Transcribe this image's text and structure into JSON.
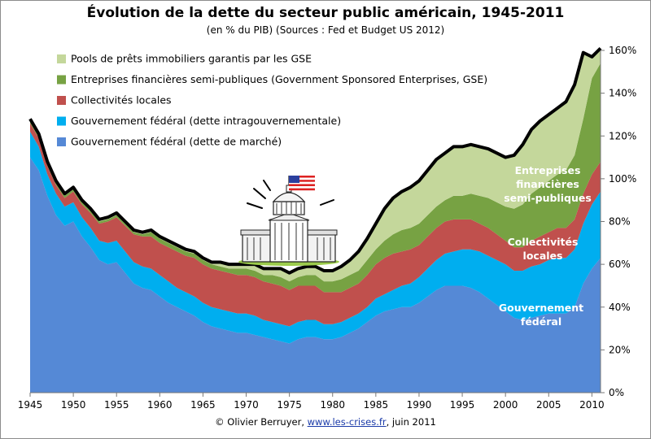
{
  "chart_data": {
    "type": "area",
    "title": "Évolution de la dette du secteur public américain, 1945-2011",
    "subtitle": "(en % du PIB) (Sources : Fed et Budget US 2012)",
    "xlabel": "",
    "ylabel": "",
    "xlim": [
      1945,
      2011
    ],
    "ylim": [
      0,
      160
    ],
    "stacked": true,
    "grid": false,
    "legend_placement": "top-left",
    "x_ticks": [
      1945,
      1950,
      1955,
      1960,
      1965,
      1970,
      1975,
      1980,
      1985,
      1990,
      1995,
      2000,
      2005,
      2010
    ],
    "x_tick_labels": [
      "1945",
      "1950",
      "1955",
      "1960",
      "1965",
      "1970",
      "1975",
      "1980",
      "1985",
      "1990",
      "1995",
      "2000",
      "2005",
      "2010"
    ],
    "y_ticks": [
      0,
      20,
      40,
      60,
      80,
      100,
      120,
      140,
      160
    ],
    "y_tick_labels": [
      "0%",
      "20%",
      "40%",
      "60%",
      "80%",
      "100%",
      "120%",
      "140%",
      "160%"
    ],
    "x": [
      1945,
      1946,
      1947,
      1948,
      1949,
      1950,
      1951,
      1952,
      1953,
      1954,
      1955,
      1956,
      1957,
      1958,
      1959,
      1960,
      1961,
      1962,
      1963,
      1964,
      1965,
      1966,
      1967,
      1968,
      1969,
      1970,
      1971,
      1972,
      1973,
      1974,
      1975,
      1976,
      1977,
      1978,
      1979,
      1980,
      1981,
      1982,
      1983,
      1984,
      1985,
      1986,
      1987,
      1988,
      1989,
      1990,
      1991,
      1992,
      1993,
      1994,
      1995,
      1996,
      1997,
      1998,
      1999,
      2000,
      2001,
      2002,
      2003,
      2004,
      2005,
      2006,
      2007,
      2008,
      2009,
      2010,
      2011
    ],
    "series": [
      {
        "name": "Gouvernement fédéral (dette de marché)",
        "color": "#5589d6",
        "values": [
          110,
          104,
          92,
          83,
          78,
          80,
          73,
          68,
          62,
          60,
          61,
          56,
          51,
          49,
          48,
          45,
          42,
          40,
          38,
          36,
          33,
          31,
          30,
          29,
          28,
          28,
          27,
          26,
          25,
          24,
          23,
          25,
          26,
          26,
          25,
          25,
          26,
          28,
          30,
          33,
          36,
          38,
          39,
          40,
          40,
          42,
          45,
          48,
          50,
          50,
          50,
          49,
          47,
          44,
          41,
          38,
          35,
          34,
          35,
          36,
          37,
          37,
          37,
          40,
          51,
          58,
          63
        ]
      },
      {
        "name": "Gouvernement fédéral (dette intragouvernementale)",
        "color": "#00aeef",
        "values": [
          12,
          11,
          10,
          10,
          9,
          9,
          9,
          9,
          9,
          10,
          10,
          10,
          10,
          10,
          10,
          10,
          10,
          9,
          9,
          9,
          9,
          9,
          9,
          9,
          9,
          9,
          9,
          8,
          8,
          8,
          8,
          8,
          8,
          8,
          7,
          7,
          7,
          7,
          7,
          7,
          8,
          8,
          9,
          10,
          11,
          12,
          13,
          14,
          15,
          16,
          17,
          18,
          19,
          20,
          21,
          22,
          22,
          23,
          24,
          24,
          25,
          26,
          26,
          27,
          28,
          30,
          31
        ]
      },
      {
        "name": "Collectivités locales",
        "color": "#c0504d",
        "values": [
          4,
          4,
          4,
          4,
          4,
          5,
          6,
          7,
          8,
          10,
          11,
          12,
          13,
          14,
          15,
          15,
          16,
          17,
          17,
          18,
          18,
          18,
          18,
          18,
          18,
          18,
          18,
          18,
          18,
          18,
          17,
          17,
          16,
          16,
          15,
          15,
          14,
          14,
          14,
          15,
          16,
          17,
          17,
          16,
          16,
          15,
          15,
          15,
          15,
          15,
          14,
          14,
          13,
          13,
          12,
          11,
          11,
          11,
          12,
          13,
          13,
          14,
          14,
          14,
          14,
          14,
          14
        ]
      },
      {
        "name": "Entreprises financières semi-publiques (Government Sponsored Enterprises, GSE)",
        "color": "#77a243",
        "values": [
          1,
          1,
          1,
          1,
          1,
          1,
          1,
          1,
          1,
          1,
          1,
          1,
          1,
          1,
          2,
          2,
          2,
          2,
          2,
          2,
          2,
          2,
          2,
          2,
          3,
          3,
          3,
          3,
          4,
          4,
          4,
          4,
          5,
          5,
          5,
          5,
          6,
          6,
          6,
          7,
          7,
          8,
          9,
          10,
          10,
          10,
          10,
          10,
          10,
          11,
          11,
          12,
          13,
          14,
          15,
          16,
          18,
          20,
          22,
          23,
          24,
          25,
          27,
          30,
          35,
          45,
          46
        ]
      },
      {
        "name": "Pools de prêts immobiliers garantis par les GSE",
        "color": "#c4d79b",
        "values": [
          1,
          1,
          1,
          1,
          1,
          1,
          1,
          1,
          1,
          1,
          1,
          1,
          1,
          1,
          1,
          1,
          1,
          1,
          1,
          1,
          1,
          1,
          2,
          2,
          2,
          2,
          3,
          3,
          3,
          4,
          4,
          4,
          4,
          4,
          5,
          5,
          6,
          7,
          9,
          10,
          12,
          15,
          17,
          18,
          19,
          20,
          21,
          22,
          22,
          23,
          23,
          23,
          23,
          23,
          23,
          23,
          25,
          28,
          30,
          31,
          31,
          31,
          32,
          33,
          31,
          10,
          7
        ]
      }
    ],
    "legend_order": [
      4,
      3,
      2,
      1,
      0
    ],
    "annotations": [
      {
        "lines": [
          "Entreprises",
          "financières",
          "semi-publiques"
        ]
      },
      {
        "lines": [
          "Collectivités",
          "locales"
        ]
      },
      {
        "lines": [
          "Gouvernement",
          "fédéral"
        ]
      }
    ]
  },
  "credit": {
    "prefix": "© Olivier Berruyer,",
    "link": "www.les-crises.fr",
    "suffix": ",  juin 2011"
  },
  "illustration": {
    "icon": "capitol-building-icon",
    "flag": "us-flag-icon"
  }
}
